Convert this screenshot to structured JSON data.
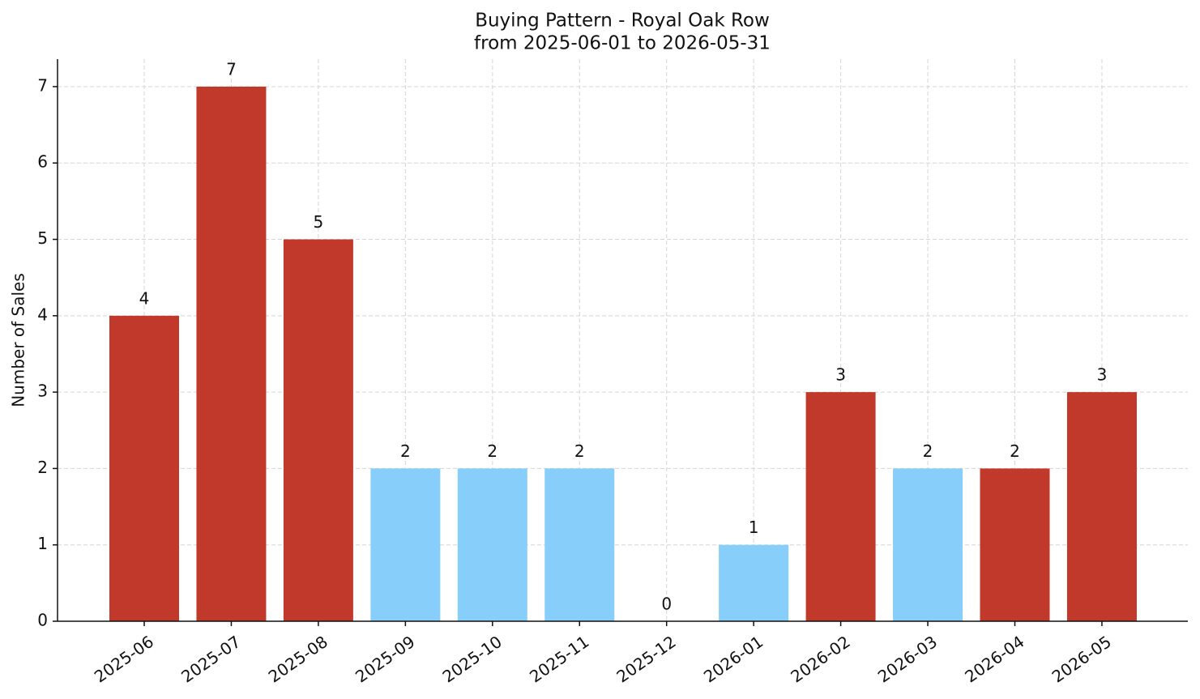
{
  "chart_data": {
    "type": "bar",
    "title": "Buying Pattern - Royal Oak Row",
    "subtitle": "from 2025-06-01 to 2026-05-31",
    "ylabel": "Number of Sales",
    "categories": [
      "2025-06",
      "2025-07",
      "2025-08",
      "2025-09",
      "2025-10",
      "2025-11",
      "2025-12",
      "2026-01",
      "2026-02",
      "2026-03",
      "2026-04",
      "2026-05"
    ],
    "values": [
      4,
      7,
      5,
      2,
      2,
      2,
      0,
      1,
      3,
      2,
      2,
      3
    ],
    "colors": [
      "#c0392b",
      "#c0392b",
      "#c0392b",
      "#87cefa",
      "#87cefa",
      "#87cefa",
      "#87cefa",
      "#87cefa",
      "#c0392b",
      "#87cefa",
      "#c0392b",
      "#c0392b"
    ],
    "ylim": [
      0,
      7.36
    ],
    "yticks": [
      0,
      1,
      2,
      3,
      4,
      5,
      6,
      7
    ],
    "grid": true
  }
}
